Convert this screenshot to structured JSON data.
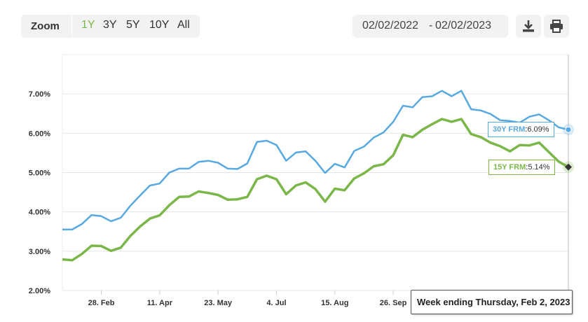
{
  "toolbar": {
    "zoom_label": "Zoom",
    "zoom_options": [
      "1Y",
      "3Y",
      "5Y",
      "10Y",
      "All"
    ],
    "active_zoom": "1Y",
    "date_from": "02/02/2022",
    "date_separator": "-",
    "date_to": "02/02/2023",
    "download_icon": "download-icon",
    "print_icon": "print-icon"
  },
  "tooltip": {
    "text": "Week ending Thursday, Feb 2, 2023"
  },
  "colors": {
    "series_30y": "#58a9e0",
    "series_15y": "#7ab648",
    "grid": "#e6e6e6"
  },
  "chart_data": {
    "type": "line",
    "y_tick_labels": [
      "2.00%",
      "3.00%",
      "4.00%",
      "5.00%",
      "6.00%",
      "7.00%"
    ],
    "y_ticks": [
      2,
      3,
      4,
      5,
      6,
      7
    ],
    "ylim": [
      2,
      8
    ],
    "x_tick_labels": [
      "28. Feb",
      "11. Apr",
      "23. May",
      "4. Jul",
      "15. Aug",
      "26. Sep"
    ],
    "x_tick_weeks": [
      4,
      10,
      16,
      22,
      28,
      34
    ],
    "xlim": [
      0,
      52
    ],
    "series": [
      {
        "name": "30Y FRM",
        "label_value": "6.09%",
        "values": [
          3.55,
          3.55,
          3.69,
          3.92,
          3.89,
          3.76,
          3.85,
          4.16,
          4.42,
          4.67,
          4.72,
          5.0,
          5.1,
          5.1,
          5.27,
          5.3,
          5.25,
          5.1,
          5.09,
          5.23,
          5.78,
          5.81,
          5.7,
          5.3,
          5.51,
          5.54,
          5.3,
          4.99,
          5.22,
          5.13,
          5.55,
          5.66,
          5.89,
          6.02,
          6.29,
          6.7,
          6.66,
          6.92,
          6.94,
          7.08,
          6.94,
          7.08,
          6.61,
          6.58,
          6.49,
          6.33,
          6.31,
          6.27,
          6.42,
          6.48,
          6.33,
          6.15,
          6.09
        ]
      },
      {
        "name": "15Y FRM",
        "label_value": "5.14%",
        "values": [
          2.79,
          2.77,
          2.93,
          3.14,
          3.13,
          3.01,
          3.09,
          3.39,
          3.63,
          3.83,
          3.91,
          4.17,
          4.38,
          4.39,
          4.52,
          4.48,
          4.43,
          4.31,
          4.32,
          4.38,
          4.83,
          4.92,
          4.83,
          4.45,
          4.67,
          4.75,
          4.58,
          4.26,
          4.59,
          4.55,
          4.85,
          4.98,
          5.16,
          5.21,
          5.44,
          5.96,
          5.9,
          6.09,
          6.23,
          6.36,
          6.29,
          6.36,
          5.98,
          5.9,
          5.76,
          5.67,
          5.54,
          5.7,
          5.69,
          5.76,
          5.52,
          5.28,
          5.14
        ]
      }
    ]
  }
}
